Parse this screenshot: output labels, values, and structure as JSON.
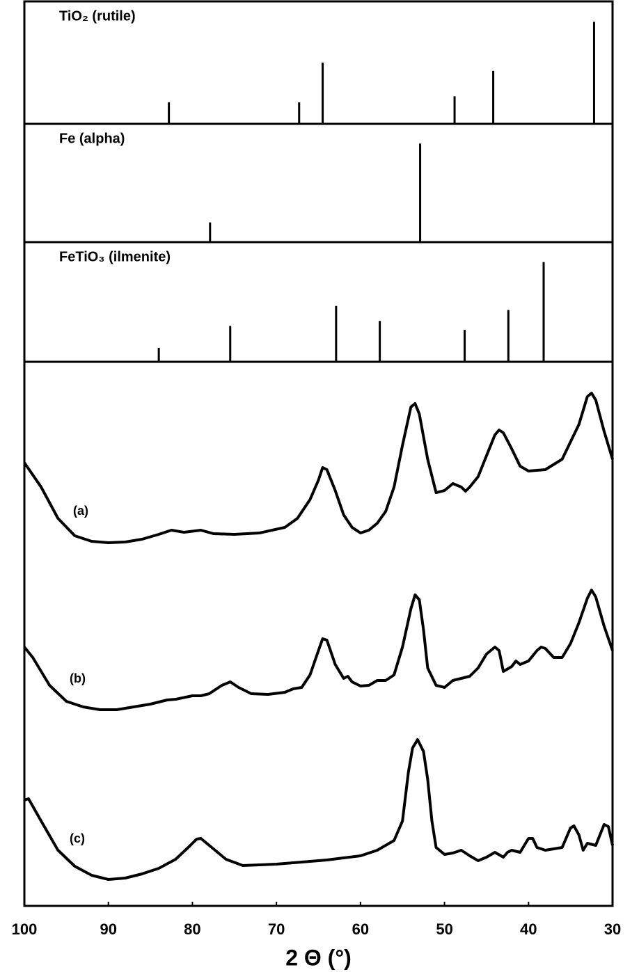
{
  "chart_data": [
    {
      "type": "stick",
      "title": "TiO₂ (rutile)",
      "xlim": [
        100,
        30
      ],
      "ylim": [
        0,
        120
      ],
      "x": [
        82.8,
        67.3,
        64.5,
        48.8,
        44.2,
        32.2
      ],
      "values": [
        21,
        21,
        60,
        27,
        52,
        100
      ],
      "color": "#000000"
    },
    {
      "type": "stick",
      "title": "Fe (alpha)",
      "xlim": [
        100,
        30
      ],
      "ylim": [
        0,
        120
      ],
      "x": [
        77.9,
        52.9
      ],
      "values": [
        20,
        100
      ],
      "color": "#000000"
    },
    {
      "type": "stick",
      "title": "FeTiO₃ (ilmenite)",
      "xlim": [
        100,
        30
      ],
      "ylim": [
        0,
        120
      ],
      "x": [
        84.0,
        75.5,
        62.9,
        57.7,
        47.6,
        42.4,
        38.2
      ],
      "values": [
        14,
        36,
        56,
        41,
        32,
        52,
        100
      ],
      "color": "#000000"
    },
    {
      "type": "line",
      "xlabel": "2 Θ (°)",
      "xlim": [
        100,
        30
      ],
      "ylim": [
        0,
        782
      ],
      "xticks": [
        100,
        90,
        80,
        70,
        60,
        50,
        40,
        30
      ],
      "series": [
        {
          "name": "(a)",
          "color": "#000000",
          "x": [
            100,
            98,
            96,
            94,
            92,
            90,
            88,
            86,
            84,
            82.5,
            81,
            79,
            77.5,
            75,
            72,
            69,
            67.5,
            66,
            65,
            64.5,
            64,
            63,
            62,
            61,
            60,
            59,
            58,
            57,
            56,
            55,
            54,
            53.5,
            53,
            52,
            51,
            50,
            49,
            48,
            47.5,
            47,
            46,
            45,
            44,
            43.5,
            43,
            42,
            41,
            40,
            38,
            36,
            34,
            33,
            32.5,
            32,
            31,
            30
          ],
          "values": [
            637,
            602,
            557,
            532,
            524,
            522,
            523,
            527,
            534,
            540,
            537,
            540,
            535,
            534,
            536,
            544,
            557,
            584,
            612,
            630,
            627,
            597,
            562,
            544,
            536,
            540,
            550,
            567,
            602,
            662,
            717,
            722,
            707,
            642,
            594,
            597,
            607,
            602,
            596,
            602,
            617,
            647,
            677,
            684,
            680,
            657,
            632,
            625,
            627,
            642,
            692,
            732,
            737,
            727,
            682,
            642
          ]
        },
        {
          "name": "(b)",
          "color": "#000000",
          "x": [
            100,
            99,
            97,
            95,
            93,
            91,
            89,
            87,
            85,
            83,
            82,
            80,
            79,
            78,
            76.5,
            75.5,
            74.5,
            73,
            71,
            69,
            68,
            67,
            66,
            65,
            64.5,
            64,
            63,
            62,
            61.5,
            61,
            60,
            59,
            58,
            57,
            56,
            55,
            54,
            53.5,
            53,
            52.5,
            52,
            51,
            50,
            49,
            48,
            47,
            46,
            45,
            44,
            43.5,
            43,
            42,
            41.5,
            41,
            40,
            39,
            38.5,
            38,
            37,
            36,
            35,
            34,
            33,
            32.5,
            32,
            31,
            30
          ],
          "values": [
            372,
            357,
            317,
            294,
            286,
            282,
            282,
            286,
            290,
            296,
            297,
            302,
            302,
            305,
            317,
            322,
            314,
            305,
            304,
            307,
            312,
            314,
            332,
            367,
            384,
            382,
            347,
            327,
            330,
            322,
            316,
            317,
            324,
            324,
            332,
            372,
            427,
            447,
            440,
            397,
            342,
            317,
            314,
            324,
            327,
            330,
            342,
            362,
            372,
            367,
            337,
            344,
            352,
            347,
            352,
            367,
            372,
            370,
            357,
            357,
            377,
            407,
            442,
            454,
            444,
            402,
            367
          ]
        },
        {
          "name": "(c)",
          "color": "#000000",
          "x": [
            100,
            99.5,
            98,
            96,
            94,
            92,
            90,
            88,
            86,
            84,
            82,
            80.5,
            79.5,
            79,
            78,
            76,
            74,
            72,
            70,
            68,
            66,
            64,
            62,
            60,
            58,
            56,
            55,
            54.3,
            53.8,
            53.2,
            52.5,
            52,
            51.5,
            51,
            50,
            49,
            48,
            47,
            46,
            45,
            44,
            43,
            42.5,
            42,
            41,
            40,
            39.5,
            39,
            38,
            36,
            35,
            34.6,
            34,
            33.5,
            33,
            32,
            31,
            30.5,
            30
          ],
          "values": [
            152,
            154,
            122,
            80,
            57,
            44,
            38,
            40,
            46,
            54,
            67,
            84,
            96,
            97,
            87,
            67,
            58,
            59,
            60,
            62,
            64,
            66,
            69,
            72,
            80,
            94,
            122,
            192,
            227,
            239,
            222,
            182,
            122,
            84,
            74,
            76,
            80,
            72,
            65,
            70,
            77,
            70,
            77,
            80,
            77,
            97,
            97,
            84,
            80,
            84,
            112,
            115,
            102,
            80,
            90,
            87,
            117,
            114,
            87
          ]
        }
      ]
    }
  ]
}
